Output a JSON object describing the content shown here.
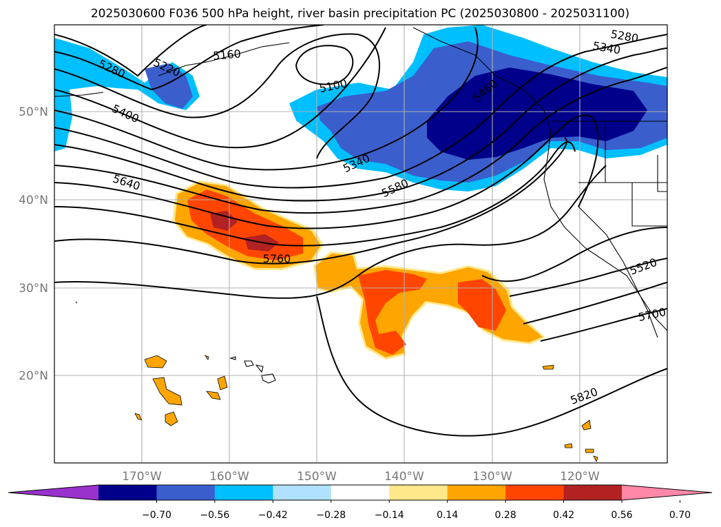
{
  "title": "2025030600 F036 500 hPa height, river basin precipitation PC (2025030800 - 2025031100)",
  "lat_labels": [
    "50°N",
    "40°N",
    "30°N",
    "20°N"
  ],
  "lon_labels": [
    "170°W",
    "160°W",
    "150°W",
    "140°W",
    "130°W",
    "120°W"
  ],
  "contour_labels": [
    "5280",
    "5220",
    "5160",
    "5100",
    "5400",
    "5340",
    "5640",
    "5580",
    "5760",
    "5280",
    "5340",
    "5460",
    "5520",
    "5700",
    "5820"
  ],
  "colorbar": {
    "tick_labels": [
      "−0.70",
      "−0.56",
      "−0.42",
      "−0.28",
      "−0.14",
      "0.14",
      "0.28",
      "0.42",
      "0.56",
      "0.70"
    ],
    "colors": [
      "#9932CC",
      "#00008B",
      "#3A5FCD",
      "#00BFFF",
      "#B0E2FF",
      "#FFFFFF",
      "#FFE88A",
      "#FFA500",
      "#FF4500",
      "#B22222",
      "#FF88A8"
    ]
  }
}
